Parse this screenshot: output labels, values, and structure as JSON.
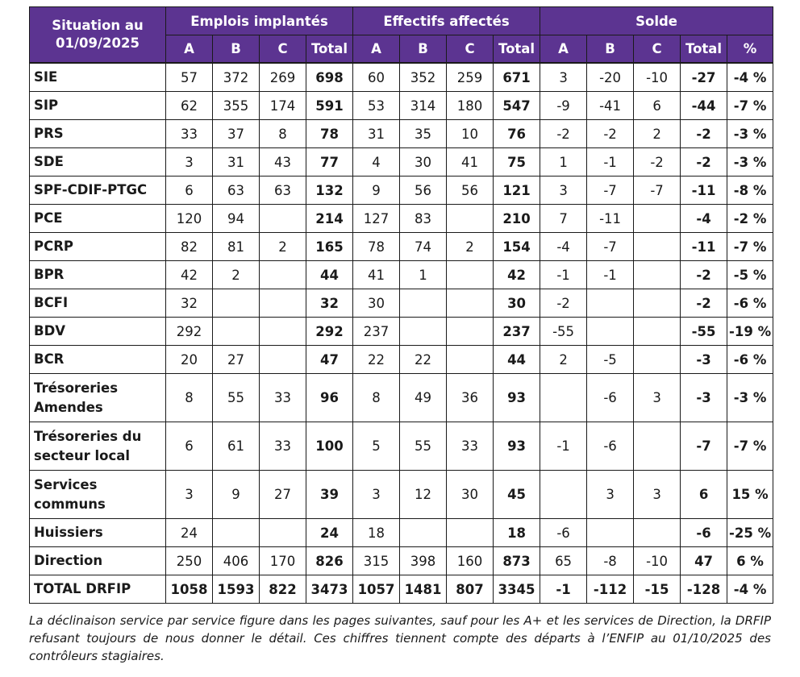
{
  "headers": {
    "situation": "Situation au 01/09/2025",
    "groups": [
      "Emplois implantés",
      "Effectifs affectés",
      "Solde"
    ],
    "sub_cols": [
      "A",
      "B",
      "C",
      "Total",
      "A",
      "B",
      "C",
      "Total",
      "A",
      "B",
      "C",
      "Total",
      "%"
    ]
  },
  "rows": [
    {
      "label": "SIE",
      "tall": false,
      "cells": [
        "57",
        "372",
        "269",
        "698",
        "60",
        "352",
        "259",
        "671",
        "3",
        "-20",
        "-10",
        "-27",
        "-4 %"
      ]
    },
    {
      "label": "SIP",
      "tall": false,
      "cells": [
        "62",
        "355",
        "174",
        "591",
        "53",
        "314",
        "180",
        "547",
        "-9",
        "-41",
        "6",
        "-44",
        "-7 %"
      ]
    },
    {
      "label": "PRS",
      "tall": false,
      "cells": [
        "33",
        "37",
        "8",
        "78",
        "31",
        "35",
        "10",
        "76",
        "-2",
        "-2",
        "2",
        "-2",
        "-3 %"
      ]
    },
    {
      "label": "SDE",
      "tall": false,
      "cells": [
        "3",
        "31",
        "43",
        "77",
        "4",
        "30",
        "41",
        "75",
        "1",
        "-1",
        "-2",
        "-2",
        "-3 %"
      ]
    },
    {
      "label": "SPF-CDIF-PTGC",
      "tall": false,
      "cells": [
        "6",
        "63",
        "63",
        "132",
        "9",
        "56",
        "56",
        "121",
        "3",
        "-7",
        "-7",
        "-11",
        "-8 %"
      ]
    },
    {
      "label": "PCE",
      "tall": false,
      "cells": [
        "120",
        "94",
        "",
        "214",
        "127",
        "83",
        "",
        "210",
        "7",
        "-11",
        "",
        "-4",
        "-2 %"
      ]
    },
    {
      "label": "PCRP",
      "tall": false,
      "cells": [
        "82",
        "81",
        "2",
        "165",
        "78",
        "74",
        "2",
        "154",
        "-4",
        "-7",
        "",
        "-11",
        "-7 %"
      ]
    },
    {
      "label": "BPR",
      "tall": false,
      "cells": [
        "42",
        "2",
        "",
        "44",
        "41",
        "1",
        "",
        "42",
        "-1",
        "-1",
        "",
        "-2",
        "-5 %"
      ]
    },
    {
      "label": "BCFI",
      "tall": false,
      "cells": [
        "32",
        "",
        "",
        "32",
        "30",
        "",
        "",
        "30",
        "-2",
        "",
        "",
        "-2",
        "-6 %"
      ]
    },
    {
      "label": "BDV",
      "tall": false,
      "cells": [
        "292",
        "",
        "",
        "292",
        "237",
        "",
        "",
        "237",
        "-55",
        "",
        "",
        "-55",
        "-19 %"
      ]
    },
    {
      "label": "BCR",
      "tall": false,
      "cells": [
        "20",
        "27",
        "",
        "47",
        "22",
        "22",
        "",
        "44",
        "2",
        "-5",
        "",
        "-3",
        "-6 %"
      ]
    },
    {
      "label": "Trésoreries Amendes",
      "tall": true,
      "cells": [
        "8",
        "55",
        "33",
        "96",
        "8",
        "49",
        "36",
        "93",
        "",
        "-6",
        "3",
        "-3",
        "-3 %"
      ]
    },
    {
      "label": "Trésoreries du secteur local",
      "tall": true,
      "cells": [
        "6",
        "61",
        "33",
        "100",
        "5",
        "55",
        "33",
        "93",
        "-1",
        "-6",
        "",
        "-7",
        "-7 %"
      ]
    },
    {
      "label": "Services communs",
      "tall": true,
      "cells": [
        "3",
        "9",
        "27",
        "39",
        "3",
        "12",
        "30",
        "45",
        "",
        "3",
        "3",
        "6",
        "15 %"
      ]
    },
    {
      "label": "Huissiers",
      "tall": false,
      "cells": [
        "24",
        "",
        "",
        "24",
        "18",
        "",
        "",
        "18",
        "-6",
        "",
        "",
        "-6",
        "-25 %"
      ]
    },
    {
      "label": "Direction",
      "tall": false,
      "cells": [
        "250",
        "406",
        "170",
        "826",
        "315",
        "398",
        "160",
        "873",
        "65",
        "-8",
        "-10",
        "47",
        "6 %"
      ]
    }
  ],
  "total": {
    "label": "TOTAL DRFIP",
    "cells": [
      "1058",
      "1593",
      "822",
      "3473",
      "1057",
      "1481",
      "807",
      "3345",
      "-1",
      "-112",
      "-15",
      "-128",
      "-4 %"
    ]
  },
  "footnote": "La déclinaison service par service figure dans les pages suivantes, sauf pour les A+ et les services de Direction, la DRFIP refusant toujours de nous donner le détail. Ces chiffres tiennent compte des départs à l’ENFIP au 01/10/2025 des contrôleurs stagiaires."
}
